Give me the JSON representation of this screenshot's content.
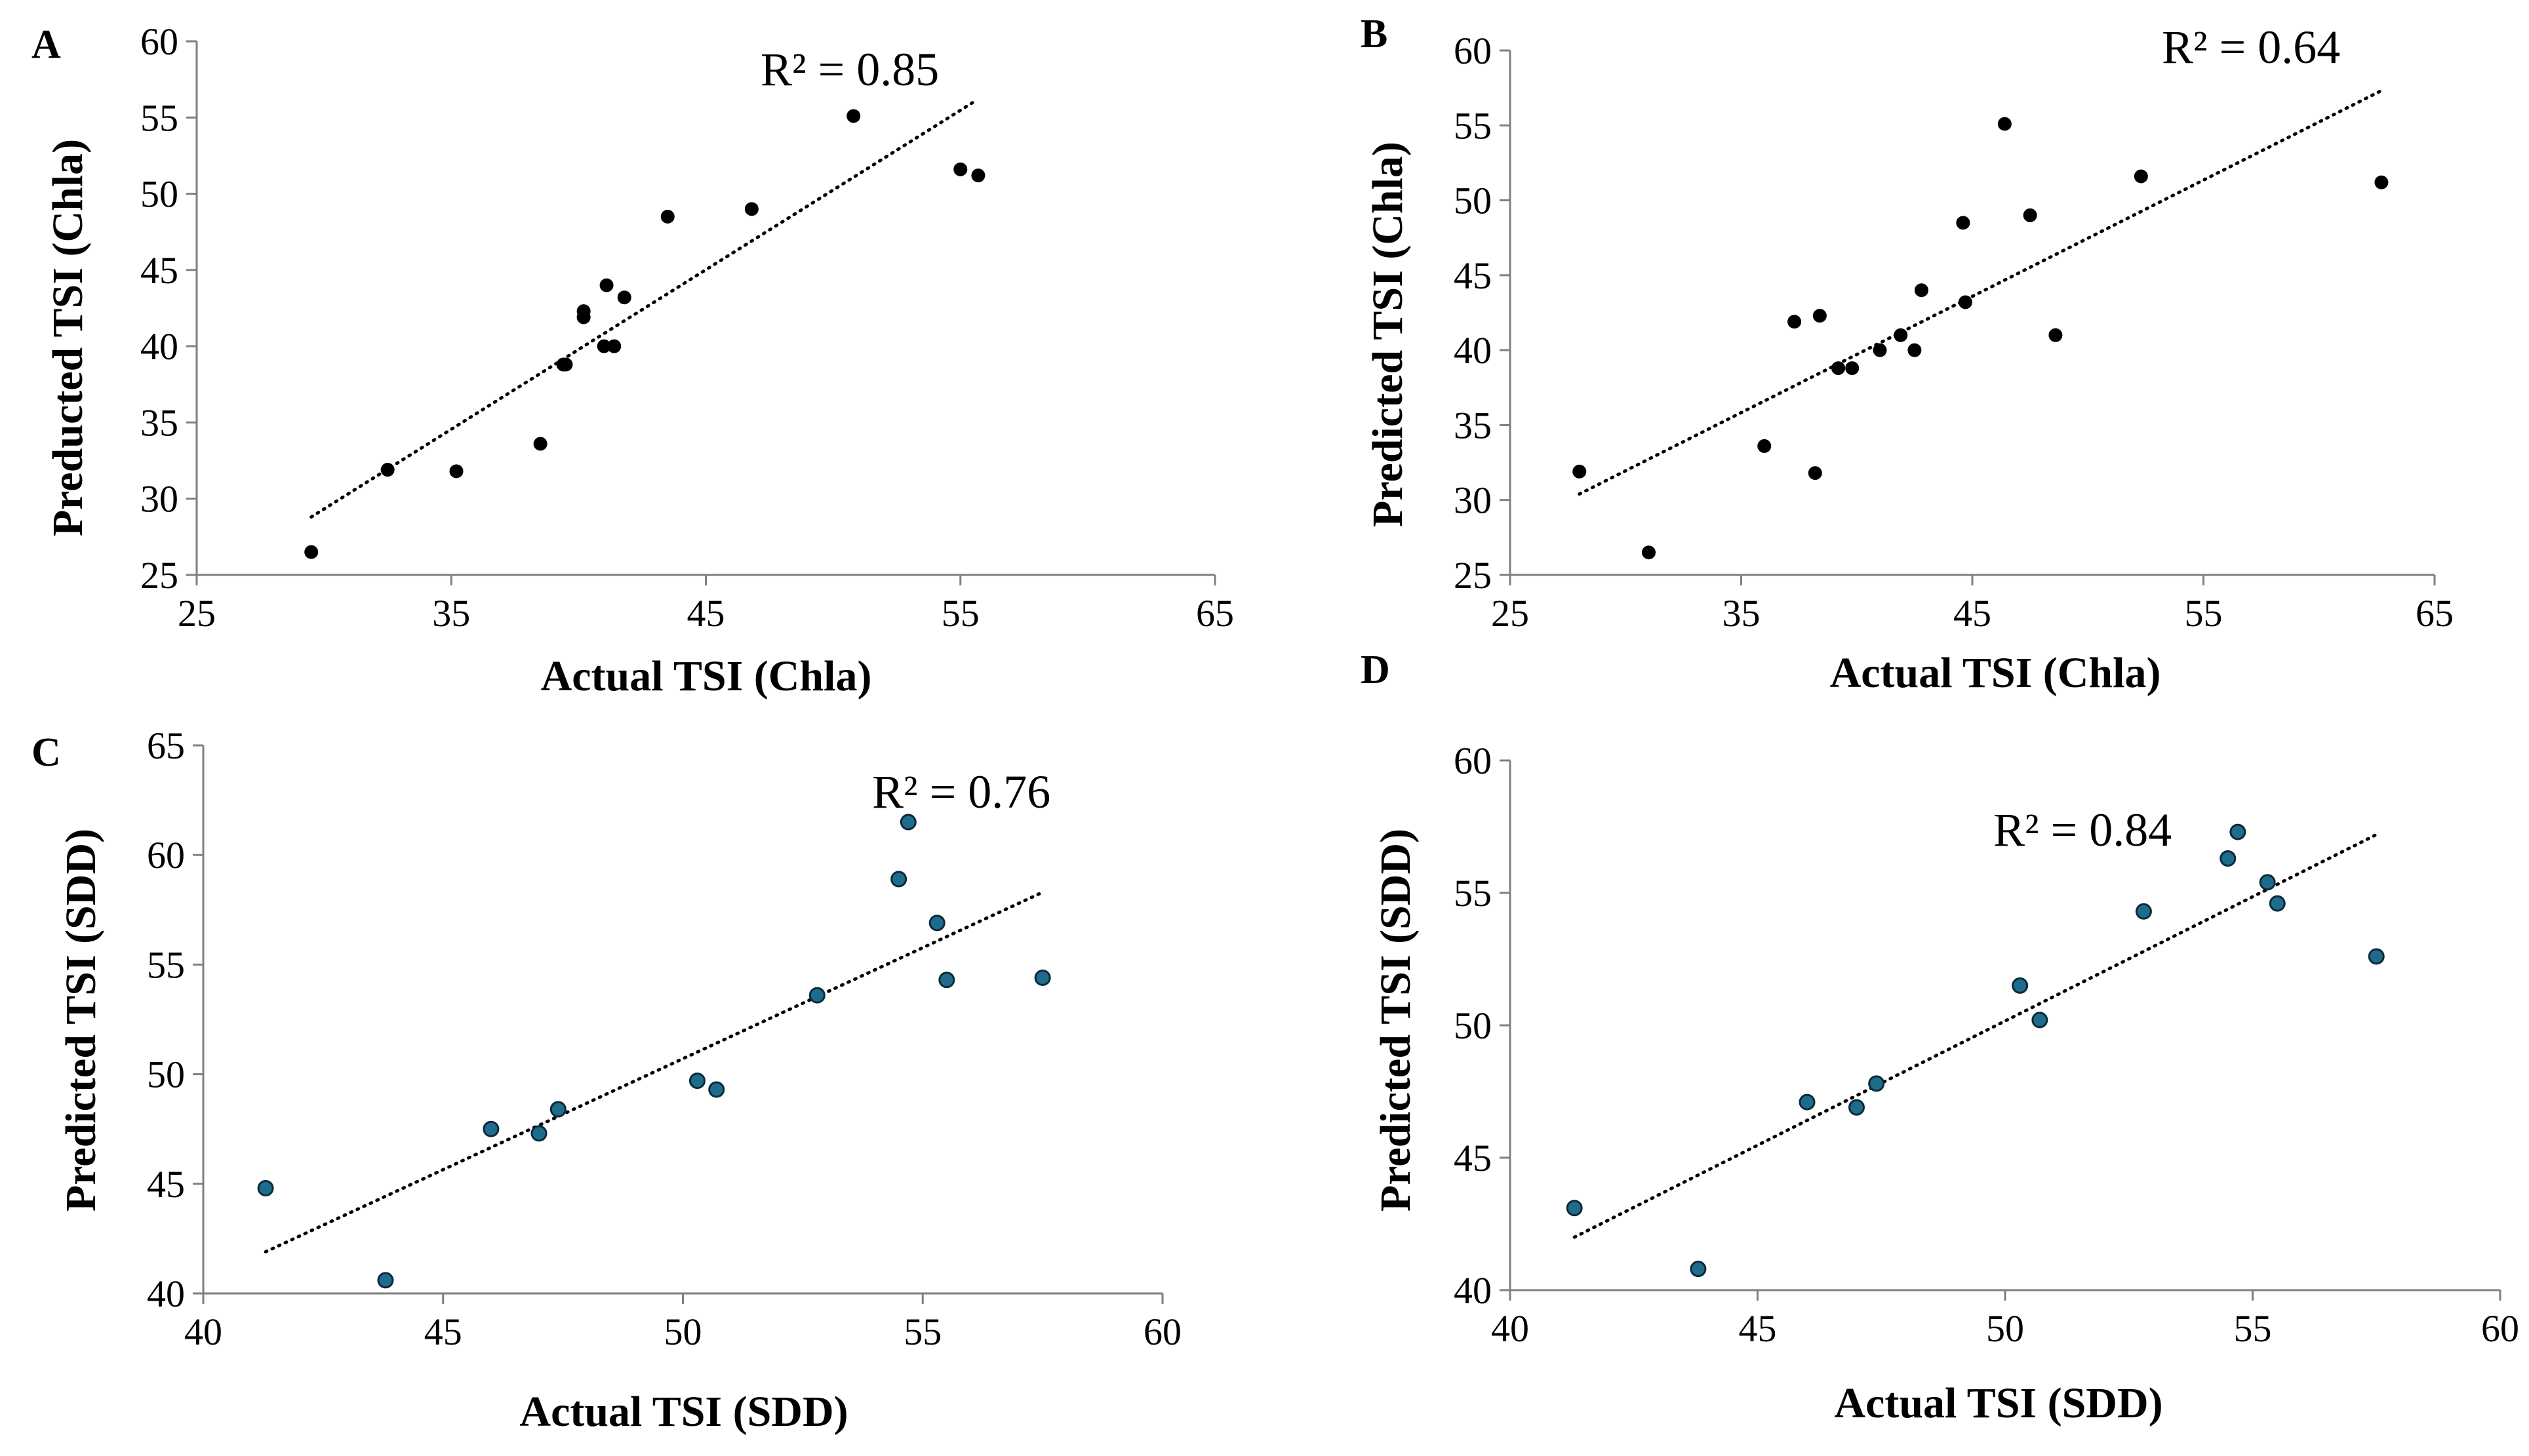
{
  "chart_data": [
    {
      "type": "scatter",
      "panel": "A",
      "xlabel": "Actual TSI (Chla)",
      "ylabel": "Preducted TSI (Chla)",
      "xlim": [
        25,
        65
      ],
      "ylim": [
        25,
        60
      ],
      "xticks": [
        25,
        35,
        45,
        55,
        65
      ],
      "yticks": [
        25,
        30,
        35,
        40,
        45,
        50,
        55,
        60
      ],
      "annotation": "R² = 0.85",
      "marker_color": "#000000",
      "trendline": {
        "x": [
          29.5,
          55.5
        ],
        "y": [
          28.8,
          56.0
        ]
      },
      "points": [
        {
          "x": 29.5,
          "y": 26.5
        },
        {
          "x": 32.5,
          "y": 31.9
        },
        {
          "x": 35.2,
          "y": 31.8
        },
        {
          "x": 38.5,
          "y": 33.6
        },
        {
          "x": 39.4,
          "y": 38.8
        },
        {
          "x": 39.5,
          "y": 38.8
        },
        {
          "x": 40.2,
          "y": 42.3
        },
        {
          "x": 40.2,
          "y": 41.9
        },
        {
          "x": 41.0,
          "y": 40.0
        },
        {
          "x": 41.1,
          "y": 44.0
        },
        {
          "x": 41.4,
          "y": 40.0
        },
        {
          "x": 41.8,
          "y": 43.2
        },
        {
          "x": 43.5,
          "y": 48.5
        },
        {
          "x": 46.8,
          "y": 49.0
        },
        {
          "x": 50.8,
          "y": 55.1
        },
        {
          "x": 55.0,
          "y": 51.6
        },
        {
          "x": 55.7,
          "y": 51.2
        }
      ]
    },
    {
      "type": "scatter",
      "panel": "B",
      "xlabel": "Actual TSI (Chla)",
      "ylabel": "Predicted TSI (Chla)",
      "xlim": [
        25,
        65
      ],
      "ylim": [
        25,
        60
      ],
      "xticks": [
        25,
        35,
        45,
        55,
        65
      ],
      "yticks": [
        25,
        30,
        35,
        40,
        45,
        50,
        55,
        60
      ],
      "annotation": "R² = 0.64",
      "marker_color": "#000000",
      "trendline": {
        "x": [
          28.0,
          62.8
        ],
        "y": [
          30.4,
          57.4
        ]
      },
      "points": [
        {
          "x": 28.0,
          "y": 31.9
        },
        {
          "x": 31.0,
          "y": 26.5
        },
        {
          "x": 36.0,
          "y": 33.6
        },
        {
          "x": 37.3,
          "y": 41.9
        },
        {
          "x": 38.2,
          "y": 31.8
        },
        {
          "x": 38.4,
          "y": 42.3
        },
        {
          "x": 39.2,
          "y": 38.8
        },
        {
          "x": 39.8,
          "y": 38.8
        },
        {
          "x": 41.0,
          "y": 40.0
        },
        {
          "x": 41.9,
          "y": 41.0
        },
        {
          "x": 42.5,
          "y": 40.0
        },
        {
          "x": 42.8,
          "y": 44.0
        },
        {
          "x": 44.6,
          "y": 48.5
        },
        {
          "x": 44.7,
          "y": 43.2
        },
        {
          "x": 46.4,
          "y": 55.1
        },
        {
          "x": 47.5,
          "y": 49.0
        },
        {
          "x": 48.6,
          "y": 41.0
        },
        {
          "x": 52.3,
          "y": 51.6
        },
        {
          "x": 62.7,
          "y": 51.2
        }
      ]
    },
    {
      "type": "scatter",
      "panel": "C",
      "xlabel": "Actual TSI (SDD)",
      "ylabel": "Predicted TSI (SDD)",
      "xlim": [
        40,
        60
      ],
      "ylim": [
        40,
        65
      ],
      "xticks": [
        40,
        45,
        50,
        55,
        60
      ],
      "yticks": [
        40,
        45,
        50,
        55,
        60,
        65
      ],
      "annotation": "R² = 0.76",
      "marker_color": "#1f6b8c",
      "trendline": {
        "x": [
          41.3,
          57.5
        ],
        "y": [
          41.9,
          58.3
        ]
      },
      "points": [
        {
          "x": 41.3,
          "y": 44.8
        },
        {
          "x": 43.8,
          "y": 40.6
        },
        {
          "x": 46.0,
          "y": 47.5
        },
        {
          "x": 47.0,
          "y": 47.3
        },
        {
          "x": 47.4,
          "y": 48.4
        },
        {
          "x": 50.3,
          "y": 49.7
        },
        {
          "x": 50.7,
          "y": 49.3
        },
        {
          "x": 52.8,
          "y": 53.6
        },
        {
          "x": 54.5,
          "y": 58.9
        },
        {
          "x": 54.7,
          "y": 61.5
        },
        {
          "x": 55.3,
          "y": 56.9
        },
        {
          "x": 55.5,
          "y": 54.3
        },
        {
          "x": 57.5,
          "y": 54.4
        }
      ]
    },
    {
      "type": "scatter",
      "panel": "D",
      "xlabel": "Actual TSI (SDD)",
      "ylabel": "Predicted TSI (SDD)",
      "xlim": [
        40,
        60
      ],
      "ylim": [
        40,
        60
      ],
      "xticks": [
        40,
        45,
        50,
        55,
        60
      ],
      "yticks": [
        40,
        45,
        50,
        55,
        60
      ],
      "annotation": "R² = 0.84",
      "marker_color": "#1f6b8c",
      "trendline": {
        "x": [
          41.3,
          57.5
        ],
        "y": [
          42.0,
          57.2
        ]
      },
      "points": [
        {
          "x": 41.3,
          "y": 43.1
        },
        {
          "x": 43.8,
          "y": 40.8
        },
        {
          "x": 46.0,
          "y": 47.1
        },
        {
          "x": 47.0,
          "y": 46.9
        },
        {
          "x": 47.4,
          "y": 47.8
        },
        {
          "x": 50.3,
          "y": 51.5
        },
        {
          "x": 50.7,
          "y": 50.2
        },
        {
          "x": 52.8,
          "y": 54.3
        },
        {
          "x": 54.5,
          "y": 56.3
        },
        {
          "x": 54.7,
          "y": 57.3
        },
        {
          "x": 55.3,
          "y": 55.4
        },
        {
          "x": 55.5,
          "y": 54.6
        },
        {
          "x": 57.5,
          "y": 52.6
        }
      ]
    }
  ]
}
